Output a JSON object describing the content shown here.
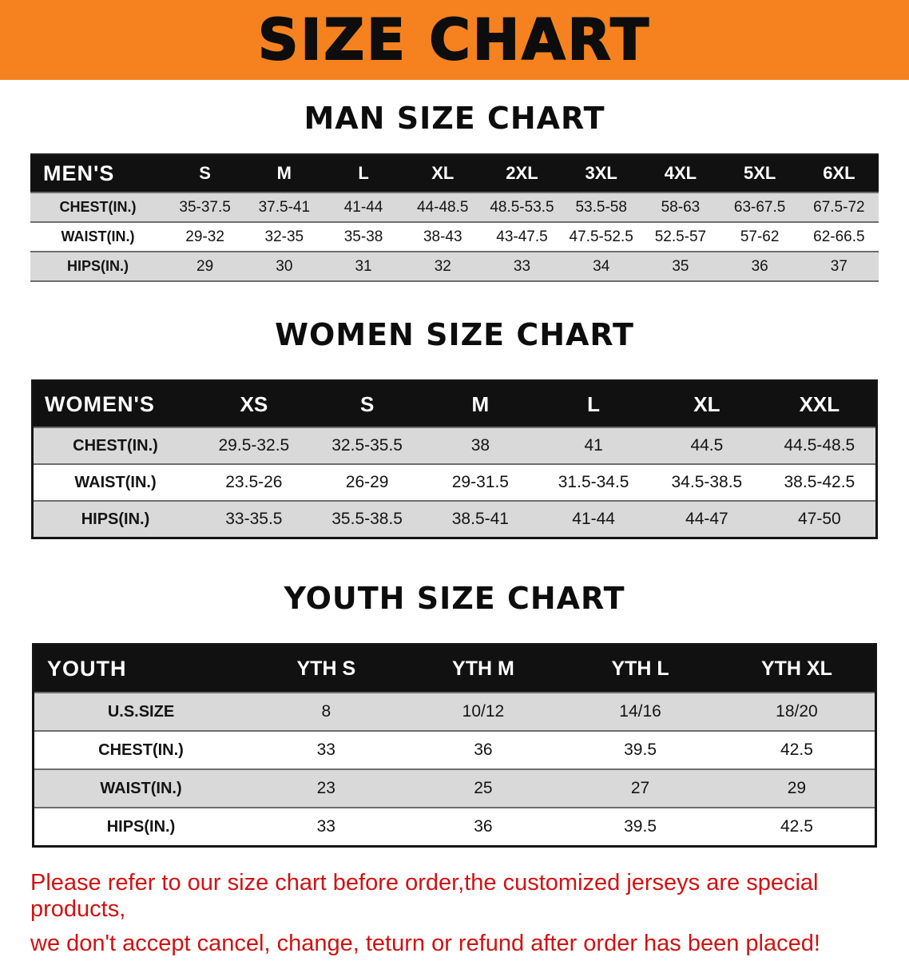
{
  "banner": {
    "title": "SIZE CHART"
  },
  "colors": {
    "banner-bg": "#f5821f",
    "header-bg": "#111111",
    "stripe": "#d9d9d9",
    "disclaimer-color": "#d01212"
  },
  "sections": [
    {
      "heading": "MAN SIZE CHART",
      "table": {
        "id": "mens-size-table",
        "corner": "MEN'S",
        "columns": [
          "S",
          "M",
          "L",
          "XL",
          "2XL",
          "3XL",
          "4XL",
          "5XL",
          "6XL"
        ],
        "rows": [
          {
            "label": "CHEST(IN.)",
            "values": [
              "35-37.5",
              "37.5-41",
              "41-44",
              "44-48.5",
              "48.5-53.5",
              "53.5-58",
              "58-63",
              "63-67.5",
              "67.5-72"
            ]
          },
          {
            "label": "WAIST(IN.)",
            "values": [
              "29-32",
              "32-35",
              "35-38",
              "38-43",
              "43-47.5",
              "47.5-52.5",
              "52.5-57",
              "57-62",
              "62-66.5"
            ]
          },
          {
            "label": "HIPS(IN.)",
            "values": [
              "29",
              "30",
              "31",
              "32",
              "33",
              "34",
              "35",
              "36",
              "37"
            ]
          }
        ]
      }
    },
    {
      "heading": "WOMEN SIZE CHART",
      "table": {
        "id": "womens-size-table",
        "corner": "WOMEN'S",
        "columns": [
          "XS",
          "S",
          "M",
          "L",
          "XL",
          "XXL"
        ],
        "rows": [
          {
            "label": "CHEST(IN.)",
            "values": [
              "29.5-32.5",
              "32.5-35.5",
              "38",
              "41",
              "44.5",
              "44.5-48.5"
            ]
          },
          {
            "label": "WAIST(IN.)",
            "values": [
              "23.5-26",
              "26-29",
              "29-31.5",
              "31.5-34.5",
              "34.5-38.5",
              "38.5-42.5"
            ]
          },
          {
            "label": "HIPS(IN.)",
            "values": [
              "33-35.5",
              "35.5-38.5",
              "38.5-41",
              "41-44",
              "44-47",
              "47-50"
            ]
          }
        ]
      }
    },
    {
      "heading": "YOUTH SIZE CHART",
      "table": {
        "id": "youth-size-table",
        "corner": "YOUTH",
        "columns": [
          "YTH S",
          "YTH M",
          "YTH L",
          "YTH XL"
        ],
        "rows": [
          {
            "label": "U.S.SIZE",
            "values": [
              "8",
              "10/12",
              "14/16",
              "18/20"
            ]
          },
          {
            "label": "CHEST(IN.)",
            "values": [
              "33",
              "36",
              "39.5",
              "42.5"
            ]
          },
          {
            "label": "WAIST(IN.)",
            "values": [
              "23",
              "25",
              "27",
              "29"
            ]
          },
          {
            "label": "HIPS(IN.)",
            "values": [
              "33",
              "36",
              "39.5",
              "42.5"
            ]
          }
        ]
      }
    }
  ],
  "disclaimer": {
    "line1": "Please refer to our size chart before order,the customized jerseys are special products,",
    "line2": "we don't accept cancel, change, teturn or refund after order has been placed!"
  }
}
